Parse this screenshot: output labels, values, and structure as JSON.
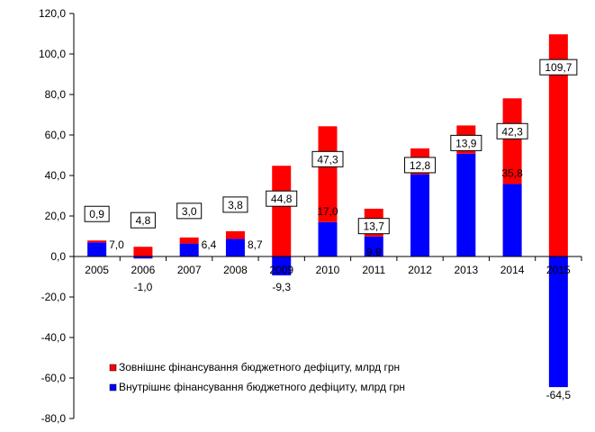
{
  "chart_data": {
    "type": "bar",
    "stacked": true,
    "categories": [
      "2005",
      "2006",
      "2007",
      "2008",
      "2009",
      "2010",
      "2011",
      "2012",
      "2013",
      "2014",
      "2015"
    ],
    "series": [
      {
        "name": "Внутрішнє фінансування бюджетного дефіциту, млрд грн",
        "color": "#0000ff",
        "values": [
          7.0,
          -1.0,
          6.4,
          8.7,
          -9.3,
          17.0,
          9.9,
          40.6,
          50.8,
          35.8,
          -64.5
        ],
        "labels": [
          "7,0",
          "-1,0",
          "6,4",
          "8,7",
          "-9,3",
          "17,0",
          "9,9",
          "40,6",
          "50,8",
          "35,8",
          "-64,5"
        ]
      },
      {
        "name": "Зовнішнє фінансування бюджетного дефіциту, млрд грн",
        "color": "#ff0000",
        "values": [
          0.9,
          4.8,
          3.0,
          3.8,
          44.8,
          47.3,
          13.7,
          12.8,
          13.9,
          42.3,
          109.7
        ],
        "labels": [
          "0,9",
          "4,8",
          "3,0",
          "3,8",
          "44,8",
          "47,3",
          "13,7",
          "12,8",
          "13,9",
          "42,3",
          "109,7"
        ]
      }
    ],
    "ylim": [
      -80,
      120
    ],
    "yticks": [
      -80,
      -60,
      -40,
      -20,
      0,
      20,
      40,
      60,
      80,
      100,
      120
    ],
    "ytick_labels": [
      "-80,0",
      "-60,0",
      "-40,0",
      "-20,0",
      "0,0",
      "20,0",
      "40,0",
      "60,0",
      "80,0",
      "100,0",
      "120,0"
    ],
    "legend_position": "bottom-left",
    "grid": false
  }
}
